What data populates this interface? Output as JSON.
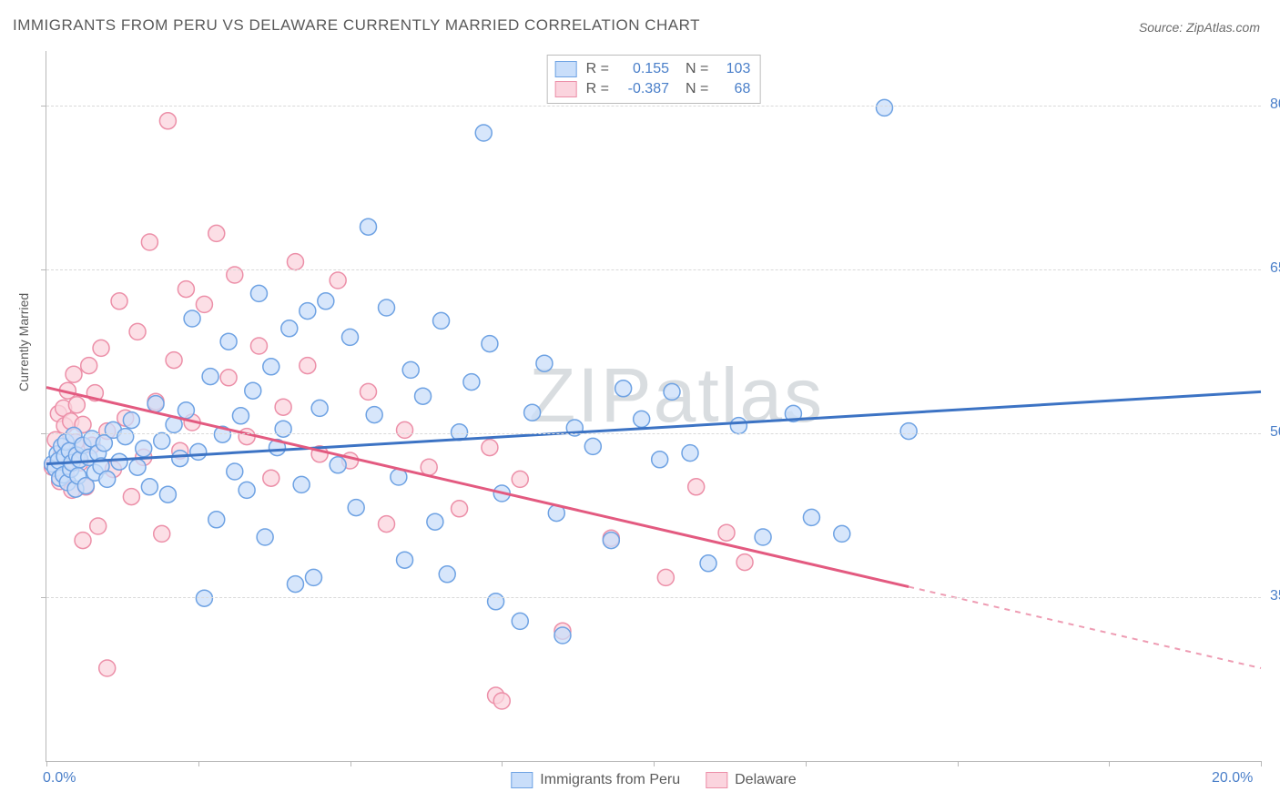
{
  "title": "IMMIGRANTS FROM PERU VS DELAWARE CURRENTLY MARRIED CORRELATION CHART",
  "source": "Source: ZipAtlas.com",
  "watermark": "ZIPatlas",
  "ylabel": "Currently Married",
  "chart": {
    "type": "scatter",
    "xlim": [
      0,
      20
    ],
    "ylim": [
      20,
      85
    ],
    "xticks": [
      0,
      2.5,
      5,
      7.5,
      10,
      12.5,
      15,
      17.5,
      20
    ],
    "xtick_labels": {
      "0": "0.0%",
      "20": "20.0%"
    },
    "yticks": [
      35,
      50,
      65,
      80
    ],
    "ytick_labels": {
      "35": "35.0%",
      "50": "50.0%",
      "65": "65.0%",
      "80": "80.0%"
    },
    "background_color": "#ffffff",
    "grid_color": "#d9d9d9",
    "axis_color": "#b9b9b9",
    "marker_radius": 9,
    "marker_stroke_width": 1.5,
    "series": {
      "peru": {
        "label": "Immigrants from Peru",
        "fill": "#c9defa",
        "stroke": "#6ea2e3",
        "line_color": "#3c73c4",
        "R": "0.155",
        "N": "103",
        "trend": {
          "x1": 0,
          "y1": 47.2,
          "x2": 20,
          "y2": 53.8,
          "solid_until_x": 20
        },
        "points": [
          [
            0.1,
            47.2
          ],
          [
            0.15,
            46.8
          ],
          [
            0.18,
            48.1
          ],
          [
            0.2,
            47.5
          ],
          [
            0.22,
            45.9
          ],
          [
            0.25,
            48.8
          ],
          [
            0.28,
            46.2
          ],
          [
            0.3,
            47.9
          ],
          [
            0.32,
            49.2
          ],
          [
            0.35,
            45.5
          ],
          [
            0.38,
            48.4
          ],
          [
            0.4,
            46.7
          ],
          [
            0.42,
            47.3
          ],
          [
            0.45,
            49.8
          ],
          [
            0.48,
            44.9
          ],
          [
            0.5,
            48.0
          ],
          [
            0.52,
            46.1
          ],
          [
            0.55,
            47.6
          ],
          [
            0.6,
            48.9
          ],
          [
            0.65,
            45.2
          ],
          [
            0.7,
            47.8
          ],
          [
            0.75,
            49.5
          ],
          [
            0.8,
            46.4
          ],
          [
            0.85,
            48.2
          ],
          [
            0.9,
            47.0
          ],
          [
            0.95,
            49.1
          ],
          [
            1.0,
            45.8
          ],
          [
            1.1,
            50.3
          ],
          [
            1.2,
            47.4
          ],
          [
            1.3,
            49.7
          ],
          [
            1.4,
            51.2
          ],
          [
            1.5,
            46.9
          ],
          [
            1.6,
            48.6
          ],
          [
            1.7,
            45.1
          ],
          [
            1.8,
            52.7
          ],
          [
            1.9,
            49.3
          ],
          [
            2.0,
            44.4
          ],
          [
            2.1,
            50.8
          ],
          [
            2.2,
            47.7
          ],
          [
            2.3,
            52.1
          ],
          [
            2.4,
            60.5
          ],
          [
            2.5,
            48.3
          ],
          [
            2.7,
            55.2
          ],
          [
            2.8,
            42.1
          ],
          [
            2.9,
            49.9
          ],
          [
            3.0,
            58.4
          ],
          [
            3.1,
            46.5
          ],
          [
            3.2,
            51.6
          ],
          [
            3.3,
            44.8
          ],
          [
            3.4,
            53.9
          ],
          [
            3.5,
            62.8
          ],
          [
            3.6,
            40.5
          ],
          [
            3.7,
            56.1
          ],
          [
            3.8,
            48.7
          ],
          [
            3.9,
            50.4
          ],
          [
            4.0,
            59.6
          ],
          [
            4.2,
            45.3
          ],
          [
            4.3,
            61.2
          ],
          [
            4.4,
            36.8
          ],
          [
            4.5,
            52.3
          ],
          [
            4.6,
            62.1
          ],
          [
            4.8,
            47.1
          ],
          [
            5.0,
            58.8
          ],
          [
            5.1,
            43.2
          ],
          [
            5.3,
            68.9
          ],
          [
            5.4,
            51.7
          ],
          [
            5.6,
            61.5
          ],
          [
            5.8,
            46.0
          ],
          [
            6.0,
            55.8
          ],
          [
            6.2,
            53.4
          ],
          [
            6.4,
            41.9
          ],
          [
            6.5,
            60.3
          ],
          [
            6.8,
            50.1
          ],
          [
            7.0,
            54.7
          ],
          [
            7.2,
            77.5
          ],
          [
            7.3,
            58.2
          ],
          [
            7.5,
            44.5
          ],
          [
            7.8,
            32.8
          ],
          [
            8.0,
            51.9
          ],
          [
            8.2,
            56.4
          ],
          [
            8.4,
            42.7
          ],
          [
            8.7,
            50.5
          ],
          [
            9.0,
            48.8
          ],
          [
            9.3,
            40.2
          ],
          [
            9.5,
            54.1
          ],
          [
            9.8,
            51.3
          ],
          [
            10.1,
            47.6
          ],
          [
            10.3,
            53.8
          ],
          [
            10.6,
            48.2
          ],
          [
            10.9,
            38.1
          ],
          [
            11.4,
            50.7
          ],
          [
            11.8,
            40.5
          ],
          [
            12.3,
            51.8
          ],
          [
            12.6,
            42.3
          ],
          [
            13.1,
            40.8
          ],
          [
            13.8,
            79.8
          ],
          [
            14.2,
            50.2
          ],
          [
            5.9,
            38.4
          ],
          [
            6.6,
            37.1
          ],
          [
            7.4,
            34.6
          ],
          [
            4.1,
            36.2
          ],
          [
            2.6,
            34.9
          ],
          [
            8.5,
            31.5
          ]
        ]
      },
      "delaware": {
        "label": "Delaware",
        "fill": "#fbd4de",
        "stroke": "#ec8fa8",
        "line_color": "#e35a80",
        "R": "-0.387",
        "N": "68",
        "trend": {
          "x1": 0,
          "y1": 54.2,
          "x2": 20,
          "y2": 28.5,
          "solid_until_x": 14.2
        },
        "points": [
          [
            0.1,
            46.9
          ],
          [
            0.15,
            49.4
          ],
          [
            0.2,
            51.8
          ],
          [
            0.22,
            45.6
          ],
          [
            0.25,
            48.1
          ],
          [
            0.28,
            52.3
          ],
          [
            0.3,
            50.7
          ],
          [
            0.32,
            46.2
          ],
          [
            0.35,
            53.9
          ],
          [
            0.38,
            48.5
          ],
          [
            0.4,
            51.1
          ],
          [
            0.42,
            44.8
          ],
          [
            0.45,
            55.4
          ],
          [
            0.48,
            49.2
          ],
          [
            0.5,
            52.6
          ],
          [
            0.55,
            47.3
          ],
          [
            0.6,
            50.8
          ],
          [
            0.65,
            45.1
          ],
          [
            0.7,
            56.2
          ],
          [
            0.75,
            48.9
          ],
          [
            0.8,
            53.7
          ],
          [
            0.85,
            41.5
          ],
          [
            0.9,
            57.8
          ],
          [
            1.0,
            50.2
          ],
          [
            1.1,
            46.7
          ],
          [
            1.2,
            62.1
          ],
          [
            1.3,
            51.4
          ],
          [
            1.4,
            44.2
          ],
          [
            1.5,
            59.3
          ],
          [
            1.6,
            47.8
          ],
          [
            1.7,
            67.5
          ],
          [
            1.8,
            52.9
          ],
          [
            1.9,
            40.8
          ],
          [
            2.0,
            78.6
          ],
          [
            2.1,
            56.7
          ],
          [
            2.2,
            48.4
          ],
          [
            2.3,
            63.2
          ],
          [
            2.4,
            51.0
          ],
          [
            2.6,
            61.8
          ],
          [
            2.8,
            68.3
          ],
          [
            3.0,
            55.1
          ],
          [
            3.1,
            64.5
          ],
          [
            3.3,
            49.7
          ],
          [
            3.5,
            58.0
          ],
          [
            3.7,
            45.9
          ],
          [
            3.9,
            52.4
          ],
          [
            4.1,
            65.7
          ],
          [
            4.3,
            56.2
          ],
          [
            4.5,
            48.1
          ],
          [
            4.8,
            64.0
          ],
          [
            5.0,
            47.5
          ],
          [
            5.3,
            53.8
          ],
          [
            5.6,
            41.7
          ],
          [
            5.9,
            50.3
          ],
          [
            6.3,
            46.9
          ],
          [
            6.8,
            43.1
          ],
          [
            7.3,
            48.7
          ],
          [
            7.4,
            26.0
          ],
          [
            7.5,
            25.5
          ],
          [
            7.8,
            45.8
          ],
          [
            8.5,
            31.9
          ],
          [
            9.3,
            40.4
          ],
          [
            10.2,
            36.8
          ],
          [
            10.7,
            45.1
          ],
          [
            11.2,
            40.9
          ],
          [
            11.5,
            38.2
          ],
          [
            1.0,
            28.5
          ],
          [
            0.6,
            40.2
          ]
        ]
      }
    }
  },
  "legend_top": {
    "R_label": "R =",
    "N_label": "N ="
  }
}
